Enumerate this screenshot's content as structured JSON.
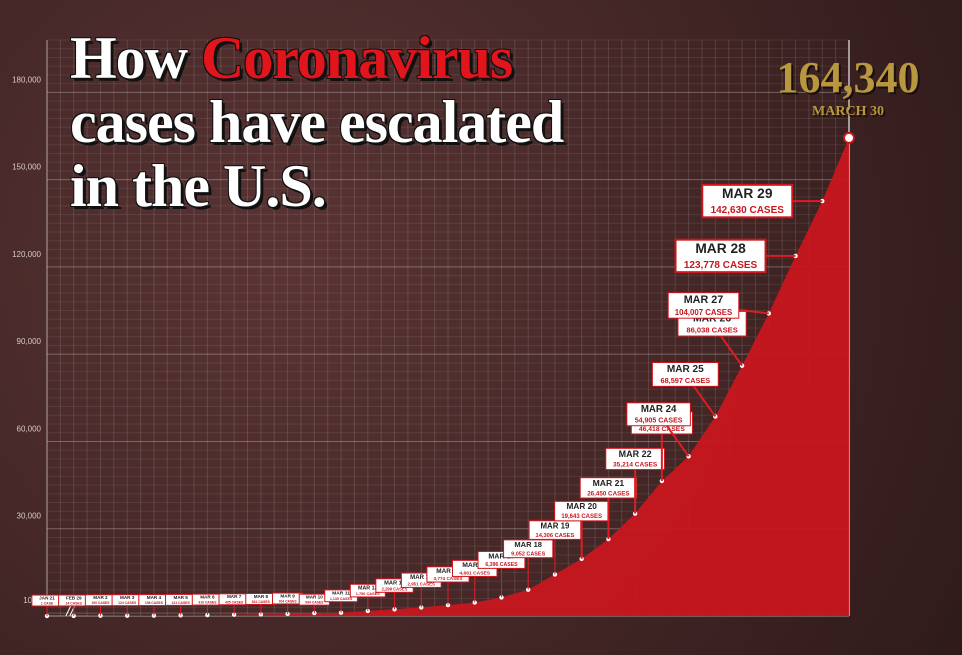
{
  "chart_data": {
    "type": "area",
    "title_parts": [
      "How",
      "Coronavirus",
      "cases have escalated",
      "in the U.S."
    ],
    "categories": [
      "JAN 21",
      "FEB 29",
      "MAR 2",
      "MAR 3",
      "MAR 4",
      "MAR 5",
      "MAR 6",
      "MAR 7",
      "MAR 8",
      "MAR 9",
      "MAR 10",
      "MAR 11",
      "MAR 12",
      "MAR 13",
      "MAR 14",
      "MAR 15",
      "MAR 16",
      "MAR 17",
      "MAR 18",
      "MAR 19",
      "MAR 20",
      "MAR 21",
      "MAR 22",
      "MAR 23",
      "MAR 24",
      "MAR 25",
      "MAR 26",
      "MAR 27",
      "MAR 28",
      "MAR 29",
      "MARCH 30"
    ],
    "values": [
      1,
      24,
      100,
      124,
      158,
      221,
      319,
      435,
      541,
      704,
      994,
      1135,
      1750,
      2299,
      2951,
      3774,
      4661,
      6396,
      9052,
      14306,
      19643,
      26450,
      35214,
      46418,
      54905,
      68597,
      86038,
      104007,
      123778,
      142630,
      164340
    ],
    "value_labels": [
      "1 CASE",
      "24 CASES",
      "100 CASES",
      "124 CASES",
      "158 CASES",
      "221 CASES",
      "319 CASES",
      "435 CASES",
      "541 CASES",
      "704 CASES",
      "994 CASES",
      "1,135 CASES",
      "1,750 CASES",
      "2,299 CASES",
      "2,951 CASES",
      "3,774 CASES",
      "4,661 CASES",
      "6,396 CASES",
      "9,052 CASES",
      "14,306 CASES",
      "19,643 CASES",
      "26,450 CASES",
      "35,214 CASES",
      "46,418 CASES",
      "54,905 CASES",
      "68,597 CASES",
      "86,038 CASES",
      "104,007 CASES",
      "123,778 CASES",
      "142,630 CASES",
      "164,340"
    ],
    "color": "#c8161d",
    "ylim": [
      0,
      198000
    ],
    "yticks": [
      1000,
      {
        "value": 30000,
        "label": "30,000"
      },
      {
        "value": 60000,
        "label": "60,000"
      },
      {
        "value": 90000,
        "label": "90,000"
      },
      {
        "value": 120000,
        "label": "120,000"
      },
      {
        "value": 150000,
        "label": "150,000"
      },
      {
        "value": 180000,
        "label": "180,000"
      }
    ],
    "grid": true
  }
}
